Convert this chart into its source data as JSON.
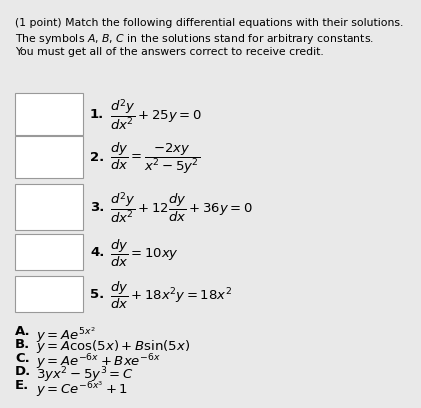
{
  "background_color": "#e9e9e9",
  "text_color": "#000000",
  "box_color": "#ffffff",
  "box_edge_color": "#999999",
  "font_size_header": 7.8,
  "font_size_eq": 9.5,
  "font_size_sol": 9.5,
  "header_lines": [
    "(1 point) Match the following differential equations with their solutions.",
    "The symbols $A$, $B$, $C$ in the solutions stand for arbitrary constants.",
    "You must get all of the answers correct to receive credit."
  ],
  "eq_labels": [
    "1.",
    "2.",
    "3.",
    "4.",
    "5."
  ],
  "eq_texts": [
    "$\\dfrac{d^2y}{dx^2} + 25y = 0$",
    "$\\dfrac{dy}{dx} = \\dfrac{-2xy}{x^2 - 5y^2}$",
    "$\\dfrac{d^2y}{dx^2} + 12\\dfrac{dy}{dx} + 36y = 0$",
    "$\\dfrac{dy}{dx} = 10xy$",
    "$\\dfrac{dy}{dx} + 18x^2y = 18x^2$"
  ],
  "sol_labels": [
    "A.",
    "B.",
    "C.",
    "D.",
    "E."
  ],
  "sol_texts": [
    "$y = Ae^{5x^2}$",
    "$y = A\\cos(5x) + B\\sin(5x)$",
    "$y = Ae^{-6x} + Bxe^{-6x}$",
    "$3yx^2 - 5y^3 = C$",
    "$y = Ce^{-6x^3} + 1$"
  ]
}
